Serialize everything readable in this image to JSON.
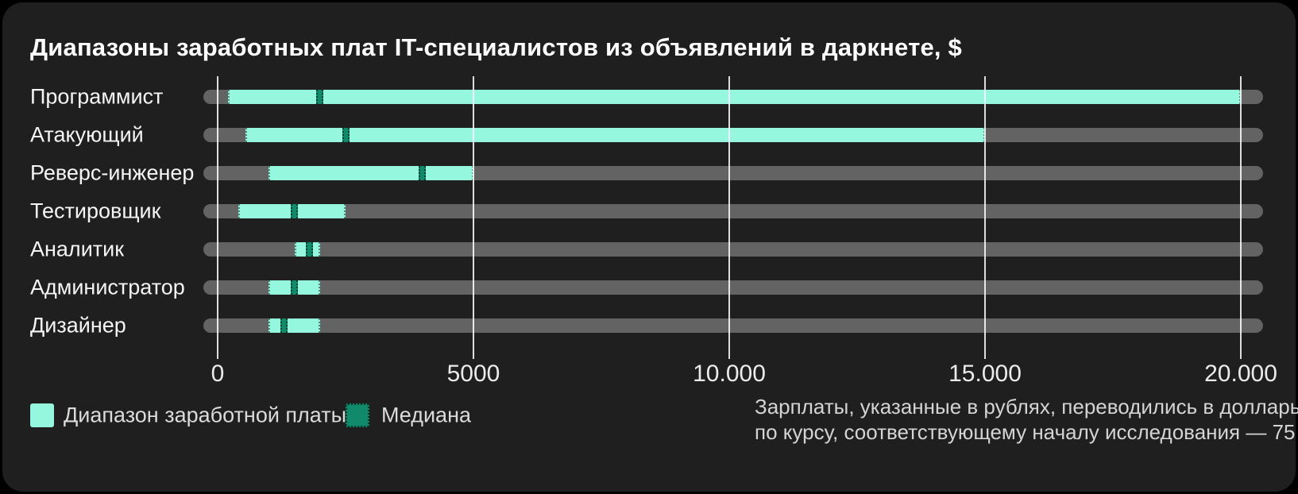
{
  "title": "Диапазоны заработных плат IT-специалистов из объявлений в даркнете, $",
  "chart_data": {
    "type": "bar",
    "subtype": "horizontal-range-bar",
    "title": "Диапазоны заработных плат IT-специалистов из объявлений в даркнете, $",
    "categories": [
      "Программист",
      "Атакующий",
      "Реверс-инженер",
      "Тестировщик",
      "Аналитик",
      "Администратор",
      "Дизайнер"
    ],
    "series": [
      {
        "name": "Диапазон заработной платы",
        "type": "range",
        "color": "#96F7DF",
        "ranges": [
          [
            200,
            20000
          ],
          [
            550,
            15000
          ],
          [
            1000,
            5000
          ],
          [
            400,
            2500
          ],
          [
            1500,
            2000
          ],
          [
            1000,
            2000
          ],
          [
            1000,
            2000
          ]
        ]
      },
      {
        "name": "Медиана",
        "type": "marker",
        "color": "#11896B",
        "values": [
          2000,
          2500,
          4000,
          1500,
          1800,
          1500,
          1300
        ]
      }
    ],
    "xlim": [
      0,
      20000
    ],
    "x_ticks": [
      {
        "value": 0,
        "label": "0"
      },
      {
        "value": 5000,
        "label": "5000"
      },
      {
        "value": 10000,
        "label": "10.000"
      },
      {
        "value": 15000,
        "label": "15.000"
      },
      {
        "value": 20000,
        "label": "20.000"
      }
    ],
    "grid": "vertical-gridlines-on",
    "legend_position": "bottom-left",
    "track_color": "#636363",
    "background_color": "#201F1F"
  },
  "legend": {
    "range_label": "Диапазон заработной платы",
    "median_label": "Медиана"
  },
  "footnote": {
    "line1": "Зарплаты, указанные в рублях, переводились в доллары",
    "line2": "по курсу, соответствующему началу исследования — 75"
  },
  "colors": {
    "page_background": "#000000",
    "card_background": "#201F1F",
    "track": "#636363",
    "range": "#96F7DF",
    "median": "#11896B",
    "gridline": "#D9D9D9",
    "title_text": "#FFFFFF",
    "category_text": "#F5F5F5",
    "tick_text": "#EBEBEB",
    "muted_text": "#D4D4D4"
  }
}
